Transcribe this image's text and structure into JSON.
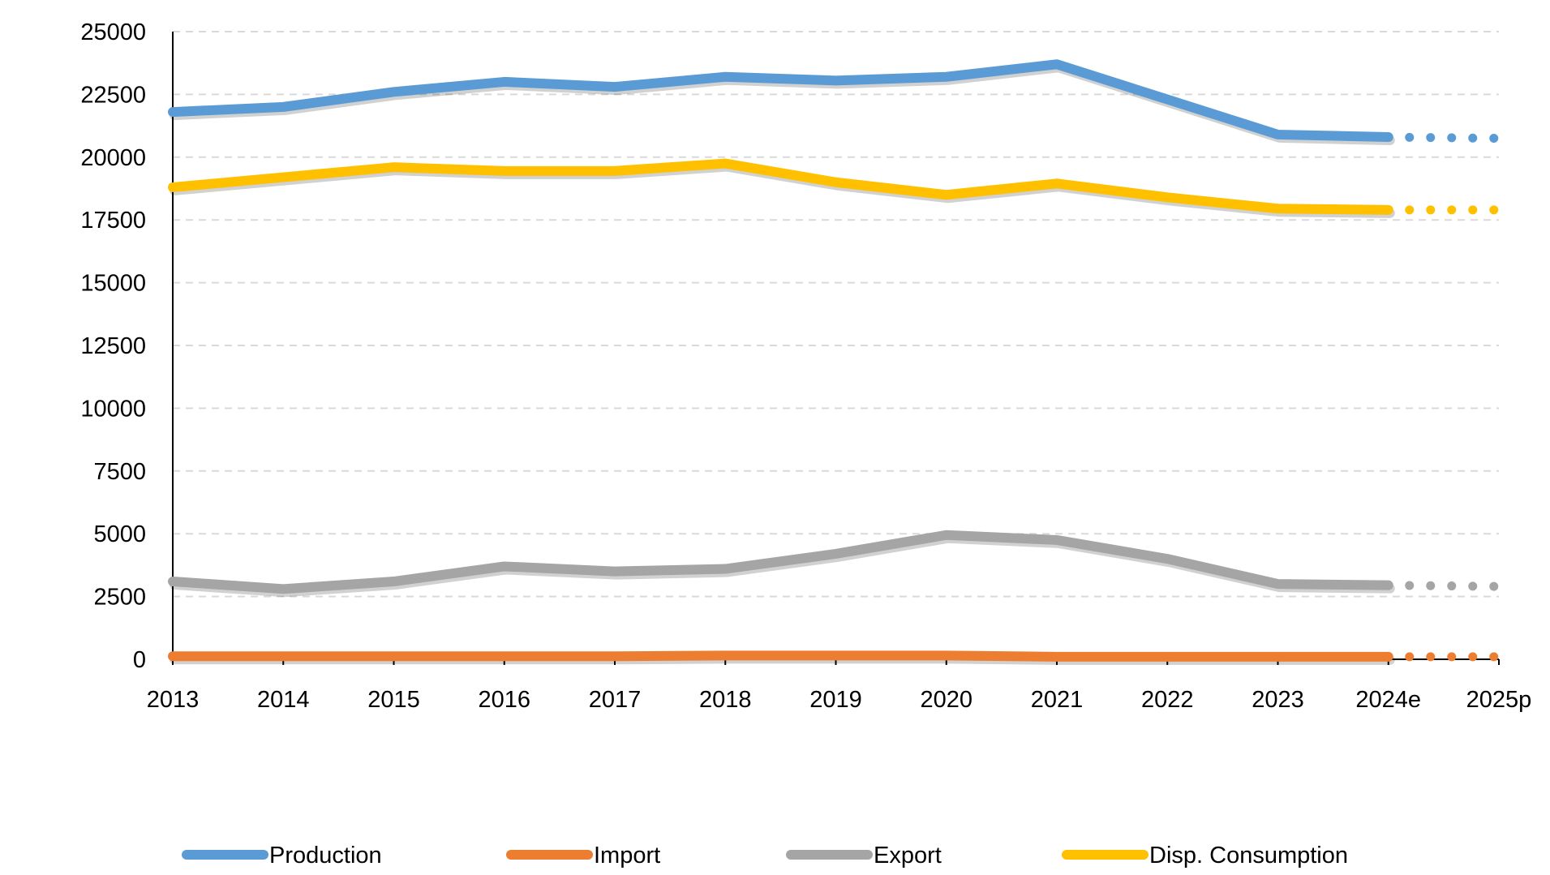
{
  "chart_data": {
    "type": "line",
    "title": "",
    "xlabel": "",
    "ylabel": "",
    "categories": [
      "2013",
      "2014",
      "2015",
      "2016",
      "2017",
      "2018",
      "2019",
      "2020",
      "2021",
      "2022",
      "2023",
      "2024e",
      "2025p"
    ],
    "ylim": [
      0,
      25000
    ],
    "yticks": [
      "0",
      "2500",
      "5000",
      "7500",
      "10000",
      "12500",
      "15000",
      "17500",
      "20000",
      "22500",
      "25000"
    ],
    "grid": true,
    "legend_position": "bottom",
    "forecast_segment": "2024e-2025p dotted",
    "series": [
      {
        "name": "Production",
        "color": "#5B9BD5",
        "values": [
          21800,
          22000,
          22600,
          23000,
          22800,
          23200,
          23050,
          23200,
          23700,
          22300,
          20900,
          20800,
          20750
        ]
      },
      {
        "name": "Import",
        "color": "#ED7D31",
        "values": [
          120,
          120,
          120,
          120,
          120,
          150,
          150,
          150,
          100,
          100,
          100,
          100,
          100
        ]
      },
      {
        "name": "Export",
        "color": "#A5A5A5",
        "values": [
          3100,
          2800,
          3100,
          3700,
          3500,
          3600,
          4200,
          4950,
          4750,
          4000,
          3000,
          2950,
          2900
        ]
      },
      {
        "name": "Disp. Consumption",
        "color": "#FFC000",
        "values": [
          18800,
          19200,
          19600,
          19450,
          19450,
          19750,
          19000,
          18500,
          18950,
          18400,
          17950,
          17900,
          17900
        ]
      }
    ]
  }
}
